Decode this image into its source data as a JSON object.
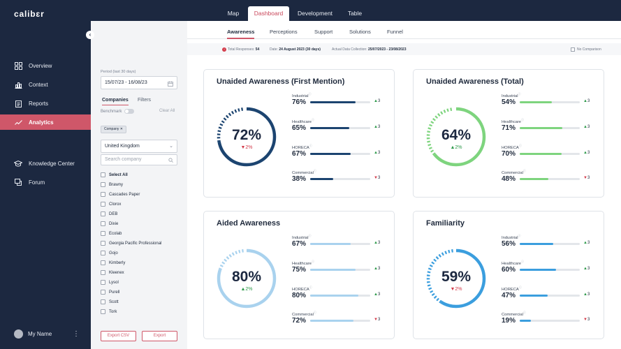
{
  "app": {
    "logo": "calibɛr"
  },
  "topnav": {
    "tabs": [
      "Map",
      "Dashboard",
      "Development",
      "Table"
    ],
    "active": "Dashboard"
  },
  "sidebar": {
    "items": [
      {
        "label": "Overview",
        "icon": "grid-icon"
      },
      {
        "label": "Context",
        "icon": "bar-chart-icon"
      },
      {
        "label": "Reports",
        "icon": "clipboard-icon"
      },
      {
        "label": "Analytics",
        "icon": "trend-line-icon",
        "active": true
      },
      {
        "label": "Knowledge Center",
        "icon": "graduation-cap-icon"
      },
      {
        "label": "Forum",
        "icon": "chat-icon"
      }
    ],
    "profile_name": "My Name"
  },
  "filters": {
    "period_label": "Period (last 30 days)",
    "period_value": "15/07/23 - 16/08/23",
    "tabs": [
      "Companies",
      "Filters"
    ],
    "benchmark_label": "Benchmark",
    "clear_all": "Clear All",
    "chip": "Company",
    "country": "United Kingdom",
    "search_placeholder": "Search company",
    "select_all": "Select All",
    "companies": [
      "Brawny",
      "Cascades Paper",
      "Clorox",
      "DEB",
      "Dixie",
      "Ecolab",
      "Georgia Pacific Professional",
      "Gojo",
      "Kimberly",
      "Kleenex",
      "Lysol",
      "Purell",
      "Scott",
      "Tork"
    ],
    "export_csv": "Export CSV",
    "export": "Export"
  },
  "subnav": {
    "tabs": [
      "Awareness",
      "Perceptions",
      "Support",
      "Solutions",
      "Funnel"
    ],
    "active": "Awareness"
  },
  "info": {
    "responses_label": "Total Responses:",
    "responses_value": "54",
    "date_label": "Date:",
    "date_value": "24 August 2023 (30 days)",
    "collection_label": "Actual Data Collection:",
    "collection_value": "25/07/2023 - 23/08/2023",
    "no_comparison": "No Comparison"
  },
  "colors": {
    "navy": "#1c4470",
    "green": "#7ed47e",
    "light_blue": "#a9d2ee",
    "mid_blue": "#3b9ede",
    "accent": "#cf5769"
  },
  "cards": [
    {
      "title": "Unaided Awareness (First Mention)",
      "value": "72%",
      "level": 72,
      "delta": "2%",
      "delta_dir": "down",
      "color": "#1c4470",
      "rows": [
        {
          "category": "Industrial",
          "value": "76%",
          "level": 76,
          "change": "3",
          "dir": "up"
        },
        {
          "category": "Healthcare",
          "value": "65%",
          "level": 65,
          "change": "3",
          "dir": "up"
        },
        {
          "category": "HORECA",
          "value": "67%",
          "level": 67,
          "change": "3",
          "dir": "up"
        },
        {
          "category": "Commercial",
          "value": "38%",
          "level": 38,
          "change": "3",
          "dir": "down"
        }
      ]
    },
    {
      "title": "Unaided Awareness (Total)",
      "value": "64%",
      "level": 64,
      "delta": "2%",
      "delta_dir": "up",
      "color": "#7ed47e",
      "rows": [
        {
          "category": "Industrial",
          "value": "54%",
          "level": 54,
          "change": "3",
          "dir": "up"
        },
        {
          "category": "Healthcare",
          "value": "71%",
          "level": 71,
          "change": "3",
          "dir": "up"
        },
        {
          "category": "HORECA",
          "value": "70%",
          "level": 70,
          "change": "3",
          "dir": "up"
        },
        {
          "category": "Commercial",
          "value": "48%",
          "level": 48,
          "change": "3",
          "dir": "down"
        }
      ]
    },
    {
      "title": "Aided Awareness",
      "value": "80%",
      "level": 80,
      "delta": "2%",
      "delta_dir": "up",
      "color": "#a9d2ee",
      "rows": [
        {
          "category": "Industrial",
          "value": "67%",
          "level": 67,
          "change": "3",
          "dir": "up"
        },
        {
          "category": "Healthcare",
          "value": "75%",
          "level": 75,
          "change": "3",
          "dir": "up"
        },
        {
          "category": "HORECA",
          "value": "80%",
          "level": 80,
          "change": "3",
          "dir": "up"
        },
        {
          "category": "Commercial",
          "value": "72%",
          "level": 72,
          "change": "3",
          "dir": "down"
        }
      ]
    },
    {
      "title": "Familiarity",
      "value": "59%",
      "level": 59,
      "delta": "2%",
      "delta_dir": "down",
      "color": "#3b9ede",
      "rows": [
        {
          "category": "Industrial",
          "value": "56%",
          "level": 56,
          "change": "3",
          "dir": "up"
        },
        {
          "category": "Healthcare",
          "value": "60%",
          "level": 60,
          "change": "3",
          "dir": "up"
        },
        {
          "category": "HORECA",
          "value": "47%",
          "level": 47,
          "change": "3",
          "dir": "up"
        },
        {
          "category": "Commercial",
          "value": "19%",
          "level": 19,
          "change": "3",
          "dir": "down"
        }
      ]
    }
  ]
}
